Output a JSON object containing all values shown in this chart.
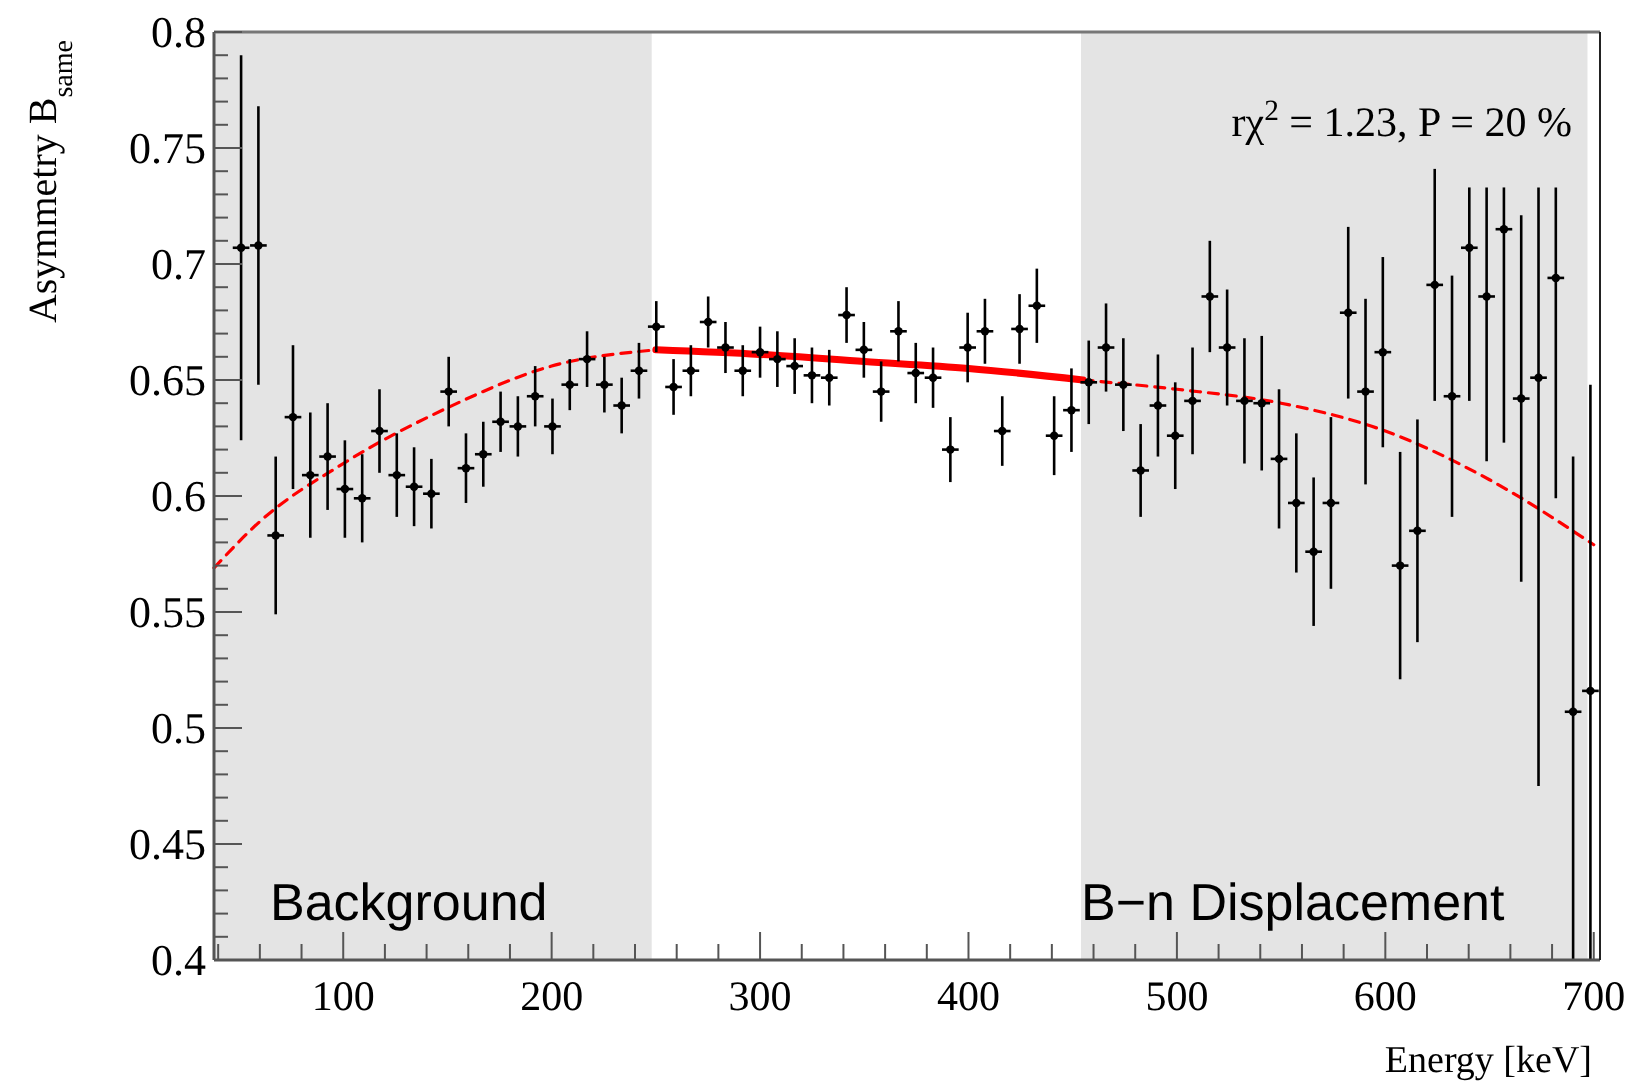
{
  "chart_data": {
    "type": "scatter",
    "xlabel": "Energy [keV]",
    "ylabel": "Asymmetry B$_{same}$",
    "xlim": [
      38,
      703
    ],
    "ylim": [
      0.4,
      0.8
    ],
    "xticks": [
      {
        "value": 40,
        "label": null
      },
      {
        "value": 60,
        "label": null
      },
      {
        "value": 80,
        "label": null
      },
      100,
      {
        "value": 120,
        "label": null
      },
      {
        "value": 140,
        "label": null
      },
      {
        "value": 160,
        "label": null
      },
      {
        "value": 180,
        "label": null
      },
      200,
      {
        "value": 220,
        "label": null
      },
      {
        "value": 240,
        "label": null
      },
      {
        "value": 260,
        "label": null
      },
      {
        "value": 280,
        "label": null
      },
      300,
      {
        "value": 320,
        "label": null
      },
      {
        "value": 340,
        "label": null
      },
      {
        "value": 360,
        "label": null
      },
      {
        "value": 380,
        "label": null
      },
      400,
      {
        "value": 420,
        "label": null
      },
      {
        "value": 440,
        "label": null
      },
      {
        "value": 460,
        "label": null
      },
      {
        "value": 480,
        "label": null
      },
      500,
      {
        "value": 520,
        "label": null
      },
      {
        "value": 540,
        "label": null
      },
      {
        "value": 560,
        "label": null
      },
      {
        "value": 580,
        "label": null
      },
      600,
      {
        "value": 620,
        "label": null
      },
      {
        "value": 640,
        "label": null
      },
      {
        "value": 660,
        "label": null
      },
      {
        "value": 680,
        "label": null
      },
      700
    ],
    "yticks": [
      0.4,
      {
        "value": 0.41,
        "label": null
      },
      {
        "value": 0.42,
        "label": null
      },
      {
        "value": 0.43,
        "label": null
      },
      {
        "value": 0.44,
        "label": null
      },
      0.45,
      {
        "value": 0.46,
        "label": null
      },
      {
        "value": 0.47,
        "label": null
      },
      {
        "value": 0.48,
        "label": null
      },
      {
        "value": 0.49,
        "label": null
      },
      0.5,
      {
        "value": 0.51,
        "label": null
      },
      {
        "value": 0.52,
        "label": null
      },
      {
        "value": 0.53,
        "label": null
      },
      {
        "value": 0.54,
        "label": null
      },
      0.55,
      {
        "value": 0.56,
        "label": null
      },
      {
        "value": 0.57,
        "label": null
      },
      {
        "value": 0.58,
        "label": null
      },
      {
        "value": 0.59,
        "label": null
      },
      0.6,
      {
        "value": 0.61,
        "label": null
      },
      {
        "value": 0.62,
        "label": null
      },
      {
        "value": 0.63,
        "label": null
      },
      {
        "value": 0.64,
        "label": null
      },
      0.65,
      {
        "value": 0.66,
        "label": null
      },
      {
        "value": 0.67,
        "label": null
      },
      {
        "value": 0.68,
        "label": null
      },
      {
        "value": 0.69,
        "label": null
      },
      0.7,
      {
        "value": 0.71,
        "label": null
      },
      {
        "value": 0.72,
        "label": null
      },
      {
        "value": 0.73,
        "label": null
      },
      {
        "value": 0.74,
        "label": null
      },
      0.75,
      {
        "value": 0.76,
        "label": null
      },
      {
        "value": 0.77,
        "label": null
      },
      {
        "value": 0.78,
        "label": null
      },
      {
        "value": 0.79,
        "label": null
      },
      0.8
    ],
    "grid": false,
    "bands": [
      {
        "axis": "x",
        "from": 38,
        "to": 248,
        "label": "Background",
        "color": "#e4e4e4"
      },
      {
        "axis": "x",
        "from": 454,
        "to": 697,
        "label": "B−n Displacement",
        "color": "#e4e4e4"
      }
    ],
    "annotations": [
      "rχ$^{2}$ = 1.23, P = 20 %"
    ],
    "series": [
      {
        "type": "scatter",
        "color": "#000000",
        "marker": "circle",
        "x": [
          51.0,
          59.3,
          67.6,
          75.9,
          84.2,
          92.5,
          100.8,
          109.1,
          117.4,
          125.7,
          134.0,
          142.3,
          150.6,
          158.9,
          167.2,
          175.5,
          183.8,
          192.1,
          200.4,
          208.7,
          217.0,
          225.3,
          233.6,
          241.9,
          250.2,
          258.5,
          266.8,
          275.1,
          283.4,
          291.7,
          300.0,
          308.3,
          316.6,
          324.9,
          333.2,
          341.5,
          349.8,
          358.1,
          366.4,
          374.7,
          383.0,
          391.3,
          399.6,
          407.9,
          416.2,
          424.5,
          432.8,
          441.1,
          449.4,
          457.7,
          466.0,
          474.3,
          482.6,
          490.9,
          499.2,
          507.5,
          515.8,
          524.1,
          532.4,
          540.7,
          549.0,
          557.3,
          565.6,
          573.9,
          582.2,
          590.5,
          598.8,
          607.1,
          615.4,
          623.7,
          632.0,
          640.3,
          648.6,
          656.9,
          665.2,
          673.5,
          681.8,
          690.1,
          698.4
        ],
        "values": [
          0.707,
          0.708,
          0.583,
          0.634,
          0.609,
          0.617,
          0.603,
          0.599,
          0.628,
          0.609,
          0.604,
          0.601,
          0.645,
          0.612,
          0.618,
          0.632,
          0.63,
          0.643,
          0.63,
          0.648,
          0.659,
          0.648,
          0.639,
          0.654,
          0.673,
          0.647,
          0.654,
          0.675,
          0.664,
          0.654,
          0.662,
          0.659,
          0.656,
          0.652,
          0.651,
          0.678,
          0.663,
          0.645,
          0.671,
          0.653,
          0.651,
          0.62,
          0.664,
          0.671,
          0.628,
          0.672,
          0.682,
          0.626,
          0.637,
          0.649,
          0.664,
          0.648,
          0.611,
          0.639,
          0.626,
          0.641,
          0.686,
          0.664,
          0.641,
          0.64,
          0.616,
          0.597,
          0.576,
          0.597,
          0.679,
          0.645,
          0.662,
          0.57,
          0.585,
          0.691,
          0.643,
          0.707,
          0.686,
          0.715,
          0.642,
          0.651,
          0.694,
          0.507,
          0.516
        ],
        "errors": [
          0.083,
          0.06,
          0.034,
          0.031,
          0.027,
          0.023,
          0.021,
          0.019,
          0.018,
          0.018,
          0.017,
          0.015,
          0.015,
          0.015,
          0.014,
          0.013,
          0.013,
          0.013,
          0.012,
          0.011,
          0.012,
          0.012,
          0.012,
          0.012,
          0.011,
          0.012,
          0.011,
          0.011,
          0.011,
          0.011,
          0.011,
          0.012,
          0.012,
          0.012,
          0.012,
          0.012,
          0.012,
          0.013,
          0.013,
          0.013,
          0.013,
          0.014,
          0.015,
          0.014,
          0.015,
          0.015,
          0.016,
          0.017,
          0.018,
          0.018,
          0.019,
          0.02,
          0.02,
          0.022,
          0.023,
          0.023,
          0.024,
          0.025,
          0.027,
          0.029,
          0.03,
          0.03,
          0.032,
          0.037,
          0.037,
          0.04,
          0.041,
          0.049,
          0.048,
          0.05,
          0.052,
          [
            0.641,
            0.733
          ],
          [
            0.615,
            0.733
          ],
          [
            0.623,
            0.733
          ],
          0.079,
          [
            0.475,
            0.733
          ],
          [
            0.599,
            0.733
          ],
          [
            0.4,
            0.617
          ],
          [
            0.4,
            0.648
          ]
        ],
        "xerrors": [
          4,
          4,
          4,
          4,
          4,
          4,
          4,
          4,
          4,
          4,
          4,
          4,
          4,
          4,
          4,
          4,
          4,
          4,
          4,
          4,
          4,
          4,
          4,
          4,
          4,
          4,
          4,
          4,
          4,
          4,
          4,
          4,
          4,
          4,
          4,
          4,
          4,
          4,
          4,
          4,
          4,
          4,
          4,
          4,
          4,
          4,
          4,
          4,
          4,
          4,
          4,
          4,
          4,
          4,
          4,
          4,
          4,
          4,
          4,
          4,
          4,
          4,
          4,
          4,
          4,
          4,
          4,
          4,
          4,
          4,
          4,
          4,
          4,
          4,
          4,
          4,
          4,
          4,
          4
        ]
      },
      {
        "type": "line",
        "color": "#ff0000",
        "line_style": "dashed",
        "x": [
          38,
          60,
          100,
          150,
          200,
          250
        ],
        "values": [
          0.569,
          0.589,
          0.614,
          0.638,
          0.656,
          0.663
        ]
      },
      {
        "type": "line",
        "color": "#ff0000",
        "line_style": "solid",
        "x": [
          250,
          300,
          350,
          400,
          455
        ],
        "values": [
          0.663,
          0.661,
          0.658,
          0.655,
          0.65
        ]
      },
      {
        "type": "line",
        "color": "#ff0000",
        "line_style": "dashed",
        "x": [
          455,
          500,
          550,
          600,
          650,
          700
        ],
        "values": [
          0.65,
          0.646,
          0.64,
          0.628,
          0.607,
          0.579
        ]
      }
    ]
  }
}
